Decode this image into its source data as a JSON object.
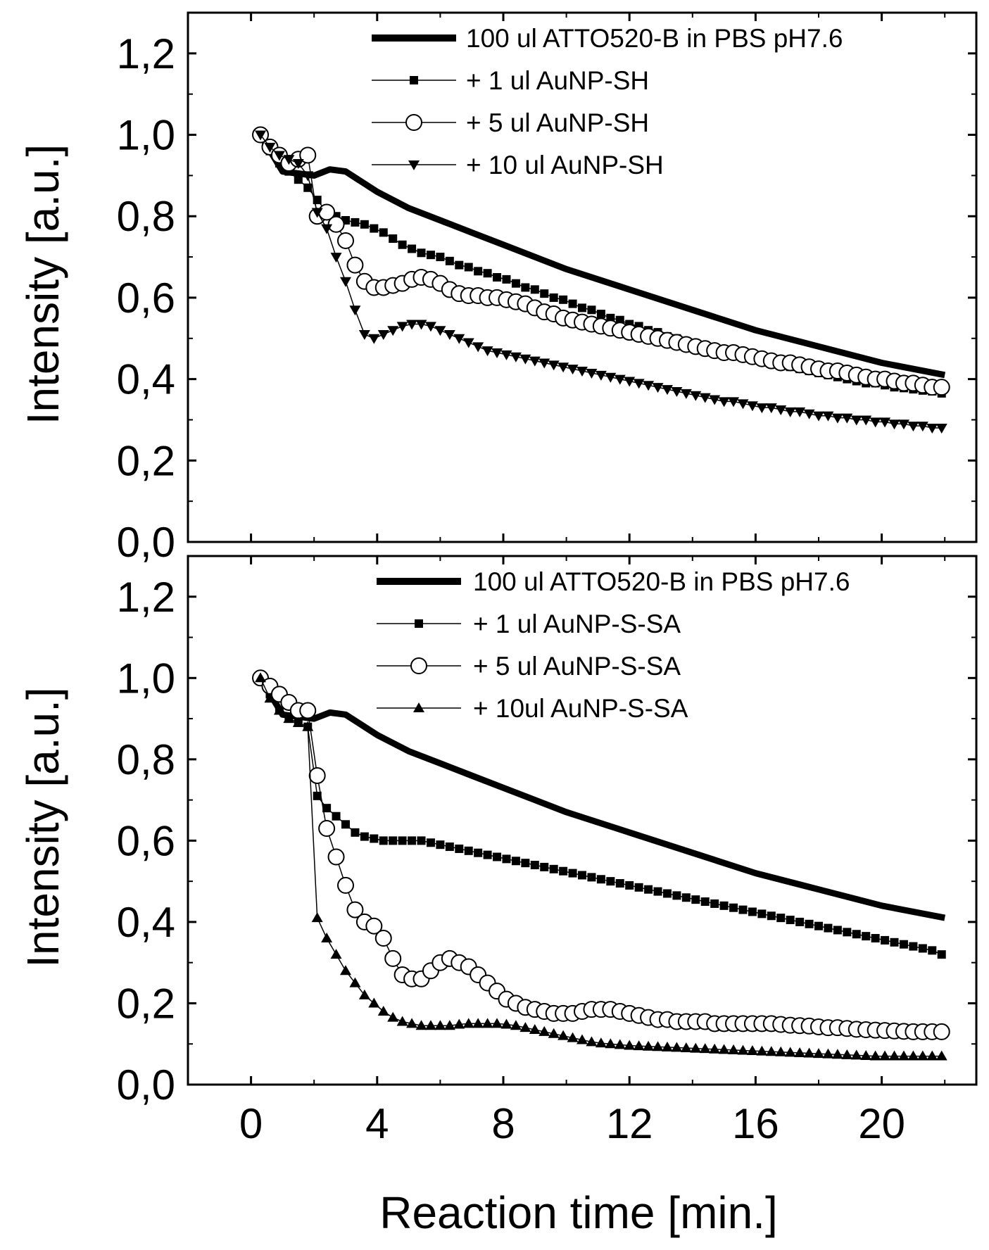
{
  "chart_data": [
    {
      "type": "line",
      "panel": "top",
      "ylabel": "Intensity [a.u.]",
      "xlabel": "",
      "xlim": [
        -2,
        23
      ],
      "ylim": [
        0,
        1.3
      ],
      "xticks": [
        0,
        4,
        8,
        12,
        16,
        20
      ],
      "xtick_labels": [],
      "yticks": [
        0,
        0.2,
        0.4,
        0.6,
        0.8,
        1.0,
        1.2
      ],
      "ytick_labels": [
        "0,0",
        "0,2",
        "0,4",
        "0,6",
        "0,8",
        "1,0",
        "1,2"
      ],
      "legend_position": "top-right",
      "series": [
        {
          "name": "100 ul ATTO520-B in PBS pH7.6",
          "style": "thick-line",
          "x": [
            0.3,
            1.0,
            2.0,
            2.5,
            3.0,
            4.0,
            5.0,
            6.0,
            7.0,
            8.0,
            9.0,
            10.0,
            12.0,
            14.0,
            16.0,
            18.0,
            20.0,
            22.0
          ],
          "y": [
            1.0,
            0.91,
            0.9,
            0.915,
            0.91,
            0.86,
            0.82,
            0.79,
            0.76,
            0.73,
            0.7,
            0.67,
            0.62,
            0.57,
            0.52,
            0.48,
            0.44,
            0.41
          ]
        },
        {
          "name": "+ 1 ul AuNP-SH",
          "style": "square",
          "x": [
            0.3,
            0.6,
            0.9,
            1.2,
            1.5,
            1.8,
            2.1,
            2.4,
            2.7,
            3.0,
            3.3,
            3.6,
            3.9,
            4.2,
            4.5,
            4.8,
            5.1,
            5.4,
            5.7,
            6.0,
            6.3,
            6.6,
            6.9,
            7.2,
            7.5,
            7.8,
            8.1,
            8.4,
            8.7,
            9.0,
            9.3,
            9.6,
            9.9,
            10.2,
            10.5,
            10.8,
            11.1,
            11.4,
            11.7,
            12.0,
            12.3,
            12.6,
            12.9,
            13.2,
            13.5,
            13.8,
            14.1,
            14.4,
            14.7,
            15.0,
            15.3,
            15.6,
            15.9,
            16.2,
            16.5,
            16.8,
            17.1,
            17.4,
            17.7,
            18.0,
            18.3,
            18.6,
            18.9,
            19.2,
            19.5,
            19.8,
            20.1,
            20.4,
            20.7,
            21.0,
            21.3,
            21.6,
            21.9
          ],
          "y": [
            1.0,
            0.96,
            0.93,
            0.91,
            0.89,
            0.87,
            0.84,
            0.81,
            0.8,
            0.79,
            0.785,
            0.78,
            0.77,
            0.76,
            0.745,
            0.73,
            0.72,
            0.71,
            0.705,
            0.7,
            0.69,
            0.68,
            0.675,
            0.665,
            0.66,
            0.65,
            0.645,
            0.635,
            0.625,
            0.62,
            0.61,
            0.6,
            0.595,
            0.585,
            0.575,
            0.57,
            0.56,
            0.55,
            0.545,
            0.535,
            0.53,
            0.52,
            0.515,
            0.505,
            0.5,
            0.49,
            0.485,
            0.48,
            0.47,
            0.465,
            0.46,
            0.455,
            0.45,
            0.445,
            0.44,
            0.435,
            0.43,
            0.425,
            0.42,
            0.415,
            0.41,
            0.405,
            0.4,
            0.395,
            0.39,
            0.39,
            0.385,
            0.38,
            0.378,
            0.375,
            0.372,
            0.37,
            0.365
          ]
        },
        {
          "name": "+ 5 ul AuNP-SH",
          "style": "open-circle",
          "x": [
            0.3,
            0.6,
            0.9,
            1.2,
            1.5,
            1.8,
            2.1,
            2.4,
            2.7,
            3.0,
            3.3,
            3.6,
            3.9,
            4.2,
            4.5,
            4.8,
            5.1,
            5.4,
            5.7,
            6.0,
            6.3,
            6.6,
            6.9,
            7.2,
            7.5,
            7.8,
            8.1,
            8.4,
            8.7,
            9.0,
            9.3,
            9.6,
            9.9,
            10.2,
            10.5,
            10.8,
            11.1,
            11.4,
            11.7,
            12.0,
            12.3,
            12.6,
            12.9,
            13.2,
            13.5,
            13.8,
            14.1,
            14.4,
            14.7,
            15.0,
            15.3,
            15.6,
            15.9,
            16.2,
            16.5,
            16.8,
            17.1,
            17.4,
            17.7,
            18.0,
            18.3,
            18.6,
            18.9,
            19.2,
            19.5,
            19.8,
            20.1,
            20.4,
            20.7,
            21.0,
            21.3,
            21.6,
            21.9
          ],
          "y": [
            1.0,
            0.97,
            0.95,
            0.93,
            0.94,
            0.95,
            0.8,
            0.81,
            0.78,
            0.74,
            0.68,
            0.64,
            0.625,
            0.625,
            0.63,
            0.635,
            0.645,
            0.65,
            0.645,
            0.635,
            0.62,
            0.61,
            0.605,
            0.605,
            0.6,
            0.6,
            0.595,
            0.59,
            0.585,
            0.575,
            0.565,
            0.56,
            0.55,
            0.545,
            0.54,
            0.535,
            0.53,
            0.525,
            0.52,
            0.515,
            0.51,
            0.505,
            0.5,
            0.495,
            0.49,
            0.485,
            0.48,
            0.475,
            0.47,
            0.465,
            0.465,
            0.46,
            0.455,
            0.45,
            0.445,
            0.44,
            0.44,
            0.435,
            0.43,
            0.425,
            0.42,
            0.42,
            0.415,
            0.41,
            0.405,
            0.4,
            0.4,
            0.395,
            0.39,
            0.39,
            0.385,
            0.38,
            0.38
          ]
        },
        {
          "name": "+ 10 ul AuNP-SH",
          "style": "down-triangle",
          "x": [
            0.3,
            0.6,
            0.9,
            1.2,
            1.5,
            1.8,
            2.1,
            2.4,
            2.7,
            3.0,
            3.3,
            3.6,
            3.9,
            4.2,
            4.5,
            4.8,
            5.1,
            5.4,
            5.7,
            6.0,
            6.3,
            6.6,
            6.9,
            7.2,
            7.5,
            7.8,
            8.1,
            8.4,
            8.7,
            9.0,
            9.3,
            9.6,
            9.9,
            10.2,
            10.5,
            10.8,
            11.1,
            11.4,
            11.7,
            12.0,
            12.3,
            12.6,
            12.9,
            13.2,
            13.5,
            13.8,
            14.1,
            14.4,
            14.7,
            15.0,
            15.3,
            15.6,
            15.9,
            16.2,
            16.5,
            16.8,
            17.1,
            17.4,
            17.7,
            18.0,
            18.3,
            18.6,
            18.9,
            19.2,
            19.5,
            19.8,
            20.1,
            20.4,
            20.7,
            21.0,
            21.3,
            21.6,
            21.9
          ],
          "y": [
            1.0,
            0.97,
            0.95,
            0.94,
            0.93,
            0.9,
            0.81,
            0.77,
            0.7,
            0.64,
            0.57,
            0.51,
            0.5,
            0.51,
            0.52,
            0.53,
            0.535,
            0.535,
            0.53,
            0.52,
            0.51,
            0.5,
            0.49,
            0.48,
            0.47,
            0.465,
            0.46,
            0.455,
            0.45,
            0.445,
            0.44,
            0.435,
            0.43,
            0.425,
            0.42,
            0.415,
            0.41,
            0.405,
            0.4,
            0.395,
            0.39,
            0.385,
            0.38,
            0.375,
            0.37,
            0.365,
            0.36,
            0.355,
            0.35,
            0.345,
            0.345,
            0.34,
            0.335,
            0.33,
            0.33,
            0.325,
            0.32,
            0.32,
            0.315,
            0.31,
            0.31,
            0.305,
            0.305,
            0.3,
            0.3,
            0.295,
            0.295,
            0.29,
            0.29,
            0.285,
            0.285,
            0.28,
            0.28
          ]
        }
      ]
    },
    {
      "type": "line",
      "panel": "bottom",
      "ylabel": "Intensity [a.u.]",
      "xlabel": "Reaction time [min.]",
      "xlim": [
        -2,
        23
      ],
      "ylim": [
        0,
        1.3
      ],
      "xticks": [
        0,
        4,
        8,
        12,
        16,
        20
      ],
      "xtick_labels": [
        "0",
        "4",
        "8",
        "12",
        "16",
        "20"
      ],
      "yticks": [
        0,
        0.2,
        0.4,
        0.6,
        0.8,
        1.0,
        1.2
      ],
      "ytick_labels": [
        "0,0",
        "0,2",
        "0,4",
        "0,6",
        "0,8",
        "1,0",
        "1,2"
      ],
      "legend_position": "top-right",
      "series": [
        {
          "name": "100 ul ATTO520-B in PBS pH7.6",
          "style": "thick-line",
          "x": [
            0.3,
            1.0,
            2.0,
            2.5,
            3.0,
            4.0,
            5.0,
            6.0,
            7.0,
            8.0,
            9.0,
            10.0,
            12.0,
            14.0,
            16.0,
            18.0,
            20.0,
            22.0
          ],
          "y": [
            1.0,
            0.91,
            0.9,
            0.915,
            0.91,
            0.86,
            0.82,
            0.79,
            0.76,
            0.73,
            0.7,
            0.67,
            0.62,
            0.57,
            0.52,
            0.48,
            0.44,
            0.41
          ]
        },
        {
          "name": "+ 1 ul AuNP-S-SA",
          "style": "square",
          "x": [
            0.3,
            0.6,
            0.9,
            1.2,
            1.5,
            1.8,
            2.1,
            2.4,
            2.7,
            3.0,
            3.3,
            3.6,
            3.9,
            4.2,
            4.5,
            4.8,
            5.1,
            5.4,
            5.7,
            6.0,
            6.3,
            6.6,
            6.9,
            7.2,
            7.5,
            7.8,
            8.1,
            8.4,
            8.7,
            9.0,
            9.3,
            9.6,
            9.9,
            10.2,
            10.5,
            10.8,
            11.1,
            11.4,
            11.7,
            12.0,
            12.3,
            12.6,
            12.9,
            13.2,
            13.5,
            13.8,
            14.1,
            14.4,
            14.7,
            15.0,
            15.3,
            15.6,
            15.9,
            16.2,
            16.5,
            16.8,
            17.1,
            17.4,
            17.7,
            18.0,
            18.3,
            18.6,
            18.9,
            19.2,
            19.5,
            19.8,
            20.1,
            20.4,
            20.7,
            21.0,
            21.3,
            21.6,
            21.9
          ],
          "y": [
            1.0,
            0.96,
            0.92,
            0.9,
            0.89,
            0.88,
            0.71,
            0.68,
            0.66,
            0.64,
            0.62,
            0.61,
            0.605,
            0.6,
            0.6,
            0.6,
            0.6,
            0.6,
            0.595,
            0.59,
            0.585,
            0.58,
            0.575,
            0.57,
            0.565,
            0.56,
            0.555,
            0.55,
            0.545,
            0.54,
            0.535,
            0.53,
            0.525,
            0.52,
            0.515,
            0.51,
            0.505,
            0.5,
            0.495,
            0.49,
            0.485,
            0.48,
            0.475,
            0.47,
            0.465,
            0.46,
            0.455,
            0.45,
            0.445,
            0.44,
            0.435,
            0.43,
            0.425,
            0.42,
            0.415,
            0.41,
            0.405,
            0.4,
            0.395,
            0.39,
            0.385,
            0.38,
            0.375,
            0.37,
            0.365,
            0.36,
            0.355,
            0.35,
            0.345,
            0.34,
            0.335,
            0.33,
            0.32
          ]
        },
        {
          "name": "+ 5 ul AuNP-S-SA",
          "style": "open-circle",
          "x": [
            0.3,
            0.6,
            0.9,
            1.2,
            1.5,
            1.8,
            2.1,
            2.4,
            2.7,
            3.0,
            3.3,
            3.6,
            3.9,
            4.2,
            4.5,
            4.8,
            5.1,
            5.4,
            5.7,
            6.0,
            6.3,
            6.6,
            6.9,
            7.2,
            7.5,
            7.8,
            8.1,
            8.4,
            8.7,
            9.0,
            9.3,
            9.6,
            9.9,
            10.2,
            10.5,
            10.8,
            11.1,
            11.4,
            11.7,
            12.0,
            12.3,
            12.6,
            12.9,
            13.2,
            13.5,
            13.8,
            14.1,
            14.4,
            14.7,
            15.0,
            15.3,
            15.6,
            15.9,
            16.2,
            16.5,
            16.8,
            17.1,
            17.4,
            17.7,
            18.0,
            18.3,
            18.6,
            18.9,
            19.2,
            19.5,
            19.8,
            20.1,
            20.4,
            20.7,
            21.0,
            21.3,
            21.6,
            21.9
          ],
          "y": [
            1.0,
            0.98,
            0.96,
            0.94,
            0.92,
            0.92,
            0.76,
            0.63,
            0.56,
            0.49,
            0.43,
            0.4,
            0.39,
            0.36,
            0.31,
            0.27,
            0.26,
            0.26,
            0.28,
            0.3,
            0.31,
            0.3,
            0.29,
            0.27,
            0.25,
            0.23,
            0.21,
            0.2,
            0.19,
            0.185,
            0.18,
            0.175,
            0.175,
            0.175,
            0.18,
            0.185,
            0.185,
            0.185,
            0.18,
            0.175,
            0.17,
            0.165,
            0.16,
            0.16,
            0.155,
            0.155,
            0.155,
            0.155,
            0.15,
            0.15,
            0.15,
            0.15,
            0.15,
            0.15,
            0.15,
            0.148,
            0.146,
            0.145,
            0.144,
            0.142,
            0.14,
            0.14,
            0.138,
            0.136,
            0.135,
            0.134,
            0.133,
            0.132,
            0.131,
            0.13,
            0.13,
            0.13,
            0.13
          ]
        },
        {
          "name": "+ 10ul AuNP-S-SA",
          "style": "up-triangle",
          "x": [
            0.3,
            0.6,
            0.9,
            1.2,
            1.5,
            1.8,
            2.1,
            2.4,
            2.7,
            3.0,
            3.3,
            3.6,
            3.9,
            4.2,
            4.5,
            4.8,
            5.1,
            5.4,
            5.7,
            6.0,
            6.3,
            6.6,
            6.9,
            7.2,
            7.5,
            7.8,
            8.1,
            8.4,
            8.7,
            9.0,
            9.3,
            9.6,
            9.9,
            10.2,
            10.5,
            10.8,
            11.1,
            11.4,
            11.7,
            12.0,
            12.3,
            12.6,
            12.9,
            13.2,
            13.5,
            13.8,
            14.1,
            14.4,
            14.7,
            15.0,
            15.3,
            15.6,
            15.9,
            16.2,
            16.5,
            16.8,
            17.1,
            17.4,
            17.7,
            18.0,
            18.3,
            18.6,
            18.9,
            19.2,
            19.5,
            19.8,
            20.1,
            20.4,
            20.7,
            21.0,
            21.3,
            21.6,
            21.9
          ],
          "y": [
            1.0,
            0.95,
            0.92,
            0.9,
            0.89,
            0.88,
            0.41,
            0.36,
            0.32,
            0.28,
            0.25,
            0.22,
            0.2,
            0.18,
            0.165,
            0.155,
            0.15,
            0.145,
            0.145,
            0.145,
            0.145,
            0.148,
            0.15,
            0.15,
            0.15,
            0.15,
            0.148,
            0.145,
            0.14,
            0.135,
            0.13,
            0.125,
            0.12,
            0.115,
            0.11,
            0.105,
            0.102,
            0.1,
            0.098,
            0.096,
            0.095,
            0.094,
            0.093,
            0.092,
            0.091,
            0.09,
            0.089,
            0.088,
            0.087,
            0.086,
            0.085,
            0.084,
            0.083,
            0.082,
            0.081,
            0.08,
            0.079,
            0.078,
            0.077,
            0.076,
            0.075,
            0.074,
            0.073,
            0.072,
            0.071,
            0.07,
            0.07,
            0.07,
            0.07,
            0.07,
            0.07,
            0.07,
            0.07
          ]
        }
      ]
    }
  ]
}
